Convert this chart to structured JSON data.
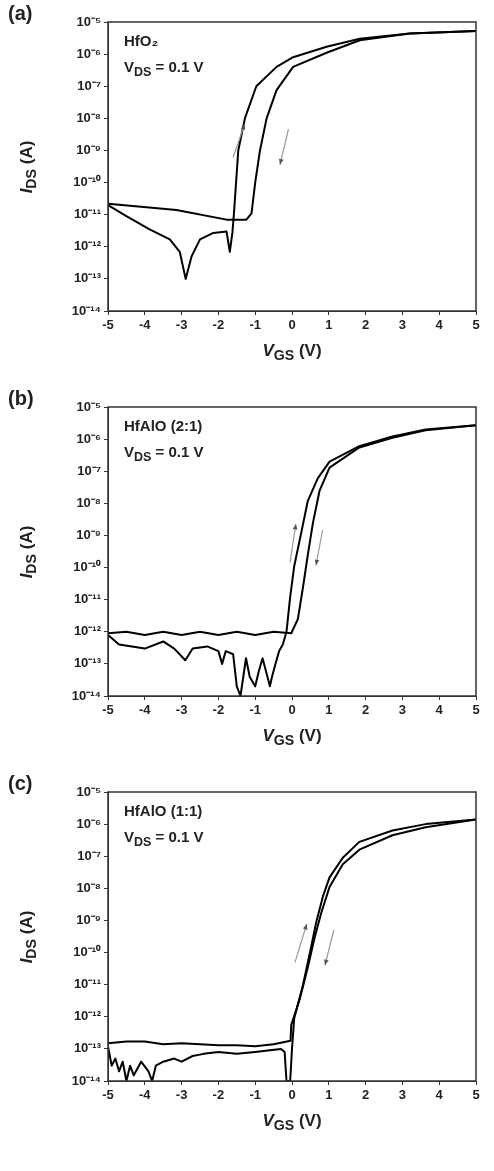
{
  "chart_data": [
    {
      "type": "line",
      "title": "(a)",
      "xlabel": "V$_{GS}$ (V)",
      "ylabel": "I$_{DS}$ (A)",
      "annotations": [
        "HfO₂",
        "V$_{DS}$ = 0.1 V"
      ],
      "log": "y",
      "grid": false,
      "marker": "none",
      "line_style": "solid",
      "xlim": [
        -5,
        5
      ],
      "xticks": [
        -5,
        -4,
        -3,
        -2,
        -1,
        0,
        1,
        2,
        3,
        4,
        5
      ],
      "ylim": [
        1e-14,
        1e-05
      ],
      "yticks": [
        {
          "value": 1e-14,
          "label": "10⁻¹⁴"
        },
        {
          "value": 1e-13,
          "label": "10⁻¹³"
        },
        {
          "value": 1e-12,
          "label": "10⁻¹²"
        },
        {
          "value": 1e-11,
          "label": "10⁻¹¹"
        },
        {
          "value": 1e-10,
          "label": "10⁻¹⁰"
        },
        {
          "value": 1e-09,
          "label": "10⁻⁹"
        },
        {
          "value": 1e-08,
          "label": "10⁻⁸"
        },
        {
          "value": 1e-07,
          "label": "10⁻⁷"
        },
        {
          "value": 1e-06,
          "label": "10⁻⁶"
        },
        {
          "value": 1e-05,
          "label": "10⁻⁵"
        }
      ],
      "series": [
        {
          "color": "#000000",
          "x": [
            -5,
            -4.5,
            -3.87,
            -3.32,
            -3.05,
            -2.89,
            -2.73,
            -2.5,
            -2.14,
            -1.78,
            -1.69,
            -1.62,
            -1.58,
            -1.46,
            -1.28,
            -0.97,
            -0.42,
            0.03,
            0.94,
            1.84,
            3.2,
            5
          ],
          "values": [
            2e-11,
            9e-12,
            3.5e-12,
            1.7e-12,
            7e-13,
            1e-13,
            5e-13,
            1.7e-12,
            2.7e-12,
            3e-12,
            7e-13,
            2.7e-12,
            1e-11,
            1e-09,
            1e-08,
            1e-07,
            4e-07,
            8e-07,
            1.7e-06,
            3e-06,
            4.4e-06,
            5.2e-06
          ]
        },
        {
          "color": "#000000",
          "x": [
            5,
            3.2,
            1.84,
            0.94,
            0.03,
            -0.42,
            -0.69,
            -0.87,
            -1.0,
            -1.1,
            -1.24,
            -1.78,
            -3.14,
            -5
          ],
          "values": [
            5.2e-06,
            4.4e-06,
            2.7e-06,
            1.1e-06,
            4e-07,
            7.6e-08,
            1e-08,
            1e-09,
            1e-10,
            1.1e-11,
            7e-12,
            7e-12,
            1.4e-11,
            2.2e-11
          ]
        }
      ]
    },
    {
      "type": "line",
      "title": "(b)",
      "xlabel": "V$_{GS}$ (V)",
      "ylabel": "I$_{DS}$ (A)",
      "annotations": [
        "HfAlO (2:1)",
        "V$_{DS}$ = 0.1 V"
      ],
      "log": "y",
      "grid": false,
      "marker": "none",
      "line_style": "solid",
      "xlim": [
        -5,
        5
      ],
      "xticks": [
        -5,
        -4,
        -3,
        -2,
        -1,
        0,
        1,
        2,
        3,
        4,
        5
      ],
      "ylim": [
        1e-14,
        1e-05
      ],
      "yticks": [
        {
          "value": 1e-14,
          "label": "10⁻¹⁴"
        },
        {
          "value": 1e-13,
          "label": "10⁻¹³"
        },
        {
          "value": 1e-12,
          "label": "10⁻¹²"
        },
        {
          "value": 1e-11,
          "label": "10⁻¹¹"
        },
        {
          "value": 1e-10,
          "label": "10⁻¹⁰"
        },
        {
          "value": 1e-09,
          "label": "10⁻⁹"
        },
        {
          "value": 1e-08,
          "label": "10⁻⁸"
        },
        {
          "value": 1e-07,
          "label": "10⁻⁷"
        },
        {
          "value": 1e-06,
          "label": "10⁻⁶"
        },
        {
          "value": 1e-05,
          "label": "10⁻⁵"
        }
      ],
      "series": [
        {
          "color": "#000000",
          "x": [
            -5,
            -4.7,
            -4,
            -3.5,
            -3.2,
            -2.9,
            -2.7,
            -2.3,
            -2,
            -1.9,
            -1.8,
            -1.6,
            -1.5,
            -1.4,
            -1.25,
            -1.15,
            -1,
            -0.9,
            -0.8,
            -0.6,
            -0.55,
            -0.45,
            -0.35,
            -0.25,
            -0.15,
            -0.05,
            0.06,
            0.25,
            0.43,
            0.7,
            1.02,
            1.83,
            2.73,
            3.63,
            5
          ],
          "values": [
            8e-13,
            4e-13,
            3e-13,
            5e-13,
            3e-13,
            1.3e-13,
            3e-13,
            3.5e-13,
            2.5e-13,
            1e-13,
            2.5e-13,
            2e-13,
            2e-14,
            1e-14,
            1.5e-13,
            4e-14,
            2e-14,
            6e-14,
            1.5e-13,
            2e-14,
            3.7e-14,
            1e-13,
            2.5e-13,
            4e-13,
            1e-12,
            1.2e-11,
            1.1e-10,
            1.2e-09,
            1.2e-08,
            6e-08,
            2e-07,
            6e-07,
            1.2e-06,
            2e-06,
            2.7e-06
          ]
        },
        {
          "color": "#000000",
          "x": [
            5,
            3.63,
            2.73,
            1.83,
            1.02,
            0.75,
            0.57,
            0.43,
            0.3,
            0.16,
            -0.02,
            -0.5,
            -1,
            -1.5,
            -2,
            -2.5,
            -3,
            -3.5,
            -4,
            -4.5,
            -5
          ],
          "values": [
            2.7e-06,
            1.9e-06,
            1.1e-06,
            5.5e-07,
            1.3e-07,
            2.5e-08,
            2.5e-09,
            2.5e-10,
            2.5e-11,
            2.5e-12,
            9e-13,
            1e-12,
            8e-13,
            1e-12,
            8e-13,
            1e-12,
            8e-13,
            1e-12,
            8e-13,
            1e-12,
            9e-13
          ]
        }
      ]
    },
    {
      "type": "line",
      "title": "(c)",
      "xlabel": "V$_{GS}$ (V)",
      "ylabel": "I$_{DS}$ (A)",
      "annotations": [
        "HfAlO (1:1)",
        "V$_{DS}$ = 0.1 V"
      ],
      "log": "y",
      "grid": false,
      "marker": "none",
      "line_style": "solid",
      "xlim": [
        -5,
        5
      ],
      "xticks": [
        -5,
        -4,
        -3,
        -2,
        -1,
        0,
        1,
        2,
        3,
        4,
        5
      ],
      "ylim": [
        1e-14,
        1e-05
      ],
      "yticks": [
        {
          "value": 1e-14,
          "label": "10⁻¹⁴"
        },
        {
          "value": 1e-13,
          "label": "10⁻¹³"
        },
        {
          "value": 1e-12,
          "label": "10⁻¹²"
        },
        {
          "value": 1e-11,
          "label": "10⁻¹¹"
        },
        {
          "value": 1e-10,
          "label": "10⁻¹⁰"
        },
        {
          "value": 1e-09,
          "label": "10⁻⁹"
        },
        {
          "value": 1e-08,
          "label": "10⁻⁸"
        },
        {
          "value": 1e-07,
          "label": "10⁻⁷"
        },
        {
          "value": 1e-06,
          "label": "10⁻⁶"
        },
        {
          "value": 1e-05,
          "label": "10⁻⁵"
        }
      ],
      "series": [
        {
          "color": "#000000",
          "x": [
            -5,
            -4.9,
            -4.8,
            -4.7,
            -4.6,
            -4.5,
            -4.4,
            -4.3,
            -4.1,
            -3.9,
            -3.8,
            -3.7,
            -3.5,
            -3.2,
            -3,
            -2.7,
            -2.4,
            -2,
            -1.5,
            -1,
            -0.6,
            -0.3,
            -0.2,
            -0.15,
            -0.05,
            0,
            0.06,
            0.3,
            0.48,
            0.66,
            0.84,
            1.02,
            1.38,
            1.83,
            2.73,
            3.63,
            5
          ],
          "values": [
            1.2e-13,
            3e-14,
            5e-14,
            2e-14,
            4e-14,
            1e-14,
            3e-14,
            1.5e-14,
            4e-14,
            2e-14,
            1e-14,
            3e-14,
            4e-14,
            5e-14,
            4e-14,
            6e-14,
            7e-14,
            8e-14,
            7e-14,
            8e-14,
            9e-14,
            1e-13,
            8e-14,
            1e-14,
            1e-14,
            1e-13,
            9e-13,
            1e-11,
            9e-11,
            9e-10,
            5.6e-09,
            2.2e-08,
            9e-08,
            2.8e-07,
            6.3e-07,
            1e-06,
            1.4e-06
          ]
        },
        {
          "color": "#000000",
          "x": [
            5,
            3.63,
            2.73,
            1.83,
            1.38,
            1.02,
            0.8,
            0.61,
            0.43,
            0.21,
            -0.02,
            -0.04,
            -0.5,
            -1,
            -1.5,
            -2,
            -2.5,
            -3,
            -3.5,
            -4,
            -4.5,
            -5
          ],
          "values": [
            1.4e-06,
            8e-07,
            4.5e-07,
            1.6e-07,
            5.6e-08,
            1.1e-08,
            1.8e-09,
            2.8e-10,
            3.5e-11,
            3.5e-12,
            5.6e-13,
            1.8e-13,
            1.4e-13,
            1.2e-13,
            1.3e-13,
            1.3e-13,
            1.4e-13,
            1.5e-13,
            1.4e-13,
            1.7e-13,
            1.7e-13,
            1.5e-13
          ]
        }
      ]
    }
  ]
}
